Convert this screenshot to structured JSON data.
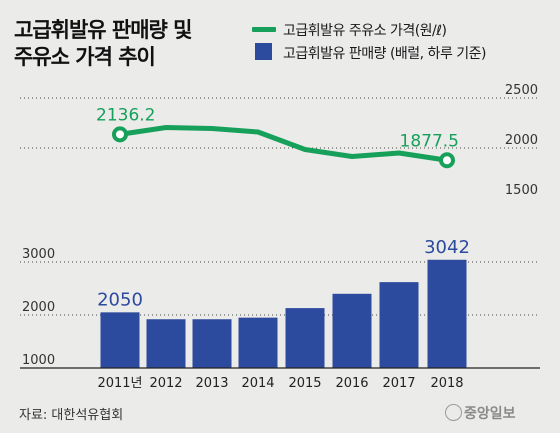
{
  "title": [
    "고급휘발유 판매량 및",
    "주유소 가격 추이"
  ],
  "source": "자료: 대한석유협회",
  "logo": "중앙일보",
  "colors": {
    "line": "#17a05a",
    "bar": "#2c4a9e",
    "label": "#2c4a9e",
    "line_label": "#17a05a"
  },
  "chart_data": [
    {
      "type": "line",
      "name": "고급휘발유 주유소 가격(원/ℓ)",
      "categories": [
        "2011년",
        "2012",
        "2013",
        "2014",
        "2015",
        "2016",
        "2017",
        "2018"
      ],
      "values": [
        2136.2,
        2205,
        2195,
        2160,
        1985,
        1915,
        1950,
        1877.5
      ],
      "data_labels": {
        "0": "2136.2",
        "7": "1877.5"
      },
      "y_ticks": [
        "2500",
        "2000",
        "1500"
      ],
      "ylim": [
        1500,
        2500
      ],
      "grid": true
    },
    {
      "type": "bar",
      "name": "고급휘발유 판매량 (배럴, 하루 기준)",
      "categories": [
        "2011년",
        "2012",
        "2013",
        "2014",
        "2015",
        "2016",
        "2017",
        "2018"
      ],
      "values": [
        2050,
        1920,
        1920,
        1950,
        2130,
        2400,
        2620,
        3042
      ],
      "data_labels": {
        "0": "2050",
        "7": "3042"
      },
      "y_ticks": [
        "3000",
        "2000",
        "1000"
      ],
      "ylim": [
        1000,
        3000
      ],
      "grid": true
    }
  ]
}
